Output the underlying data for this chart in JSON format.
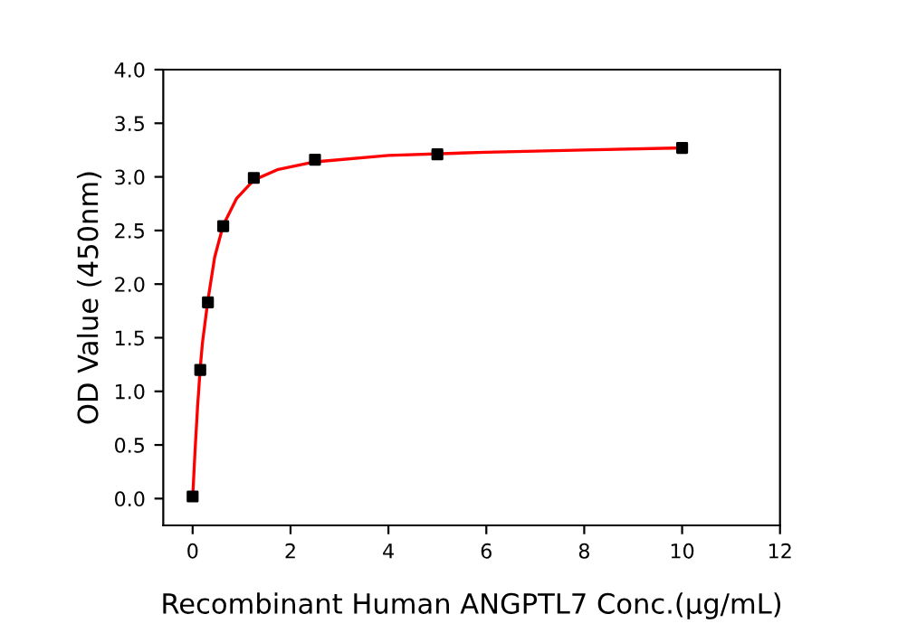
{
  "chart_data": {
    "type": "scatter",
    "xlabel": "Recombinant Human ANGPTL7 Conc.(μg/mL)",
    "ylabel": "OD Value (450nm)",
    "xlim": [
      -0.6,
      12
    ],
    "xticks": [
      0,
      2,
      4,
      6,
      8,
      10,
      12
    ],
    "ylim": [
      -0.25,
      4.0
    ],
    "yticks": [
      {
        "value": 0,
        "label": "0.0"
      },
      {
        "value": 0.5,
        "label": "0.5"
      },
      {
        "value": 1,
        "label": "1.0"
      },
      {
        "value": 1.5,
        "label": "1.5"
      },
      {
        "value": 2,
        "label": "2.0"
      },
      {
        "value": 2.5,
        "label": "2.5"
      },
      {
        "value": 3,
        "label": "3.0"
      },
      {
        "value": 3.5,
        "label": "3.5"
      },
      {
        "value": 4,
        "label": "4.0"
      }
    ],
    "grid": false,
    "legend": false,
    "marker": "square",
    "series": [
      {
        "type": "line",
        "color": "#ff0000",
        "marker": "none",
        "x": [
          0,
          0.05,
          0.1,
          0.156,
          0.2,
          0.3125,
          0.45,
          0.625,
          0.9,
          1.25,
          1.75,
          2.5,
          4,
          6,
          8,
          10
        ],
        "values": [
          0,
          0.45,
          0.85,
          1.22,
          1.45,
          1.85,
          2.25,
          2.55,
          2.8,
          2.97,
          3.07,
          3.14,
          3.2,
          3.23,
          3.25,
          3.27
        ]
      },
      {
        "color": "#000000",
        "x": [
          0,
          0.156,
          0.3125,
          0.625,
          1.25,
          2.5,
          5,
          10
        ],
        "values": [
          0.02,
          1.2,
          1.83,
          2.54,
          2.99,
          3.16,
          3.21,
          3.27
        ]
      }
    ]
  }
}
